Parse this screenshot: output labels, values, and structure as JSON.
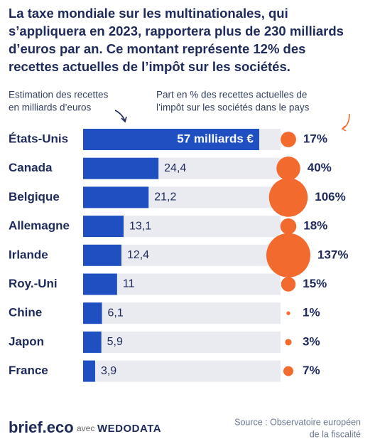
{
  "chart_data": {
    "type": "bar",
    "title": [
      "La taxe mondiale sur les multinationales, qui",
      "s’appliquera en 2023, rapportera plus de 230 milliards",
      "d’euros par an. Ce montant représente 12% des",
      "recettes actuelles de l’impôt sur les sociétés."
    ],
    "bar_header": [
      "Estimation des recettes",
      "en milliards d’euros"
    ],
    "bubble_header": [
      "Part en % des recettes actuelles de",
      "l’impôt sur les sociétés dans le pays"
    ],
    "categories": [
      "États-Unis",
      "Canada",
      "Belgique",
      "Allemagne",
      "Irlande",
      "Roy.-Uni",
      "Chine",
      "Japon",
      "France"
    ],
    "series": [
      {
        "name": "Estimation des recettes en milliards d’euros",
        "color": "#1f4fc1",
        "values": [
          57,
          24.4,
          21.2,
          13.1,
          12.4,
          11,
          6.1,
          5.9,
          3.9
        ],
        "value_labels": [
          "57 milliards €",
          "24,4",
          "21,2",
          "13,1",
          "12,4",
          "11",
          "6,1",
          "5,9",
          "3,9"
        ]
      },
      {
        "name": "Part en % des recettes actuelles de l’impôt sur les sociétés dans le pays",
        "color": "#f26a2e",
        "values": [
          17,
          40,
          106,
          18,
          137,
          15,
          1,
          3,
          7
        ],
        "value_labels": [
          "17%",
          "40%",
          "106%",
          "18%",
          "137%",
          "15%",
          "1%",
          "3%",
          "7%"
        ]
      }
    ]
  },
  "footer": {
    "brand": "brief.eco",
    "avec": "avec",
    "partner": "WEDODATA",
    "source": [
      "Source : Observatoire européen",
      "de la fiscalité"
    ]
  }
}
